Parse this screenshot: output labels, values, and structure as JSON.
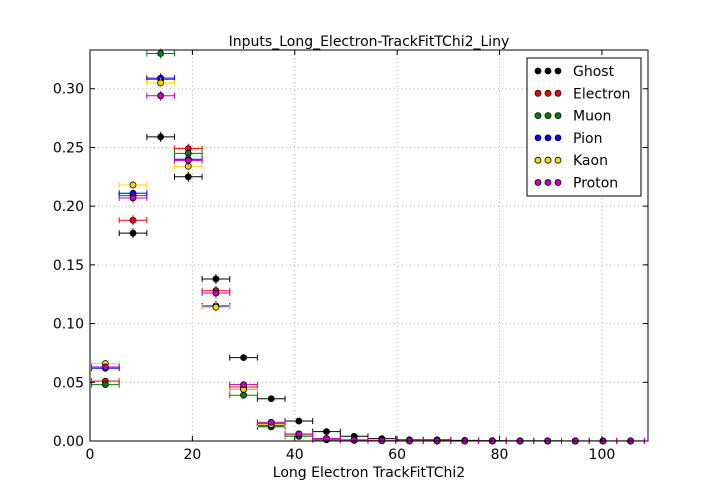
{
  "chart_data": {
    "type": "scatter",
    "title": "Inputs_Long_Electron-TrackFitTChi2_Liny",
    "xlabel": "Long Electron TrackFitTChi2",
    "ylabel": "",
    "xlim": [
      0,
      109
    ],
    "ylim": [
      0,
      0.333
    ],
    "xticks": [
      0,
      20,
      40,
      60,
      80,
      100
    ],
    "xtick_labels": [
      "0",
      "20",
      "40",
      "60",
      "80",
      "100"
    ],
    "yticks": [
      0.0,
      0.05,
      0.1,
      0.15,
      0.2,
      0.25,
      0.3
    ],
    "ytick_labels": [
      "0.00",
      "0.05",
      "0.10",
      "0.15",
      "0.20",
      "0.25",
      "0.30"
    ],
    "grid": true,
    "legend_position": "top-right",
    "bin_width": 5.4,
    "x": [
      3.0,
      8.4,
      13.8,
      19.2,
      24.6,
      30.0,
      35.4,
      40.8,
      46.2,
      51.6,
      57.0,
      62.4,
      67.8,
      73.2,
      78.6,
      84.0,
      89.4,
      94.8,
      100.2,
      105.6
    ],
    "series": [
      {
        "name": "Ghost",
        "color": "#000000",
        "values": [
          0.063,
          0.177,
          0.259,
          0.225,
          0.138,
          0.071,
          0.036,
          0.017,
          0.008,
          0.004,
          0.002,
          0.001,
          0.001,
          0.0005,
          0.0003,
          0.0002,
          0.0002,
          0.0001,
          0.0001,
          0.0001
        ]
      },
      {
        "name": "Electron",
        "color": "#ff0000",
        "values": [
          0.051,
          0.188,
          0.308,
          0.249,
          0.128,
          0.046,
          0.015,
          0.006,
          0.002,
          0.001,
          0.0005,
          0.0003,
          0.0002,
          0.0001,
          0.0001,
          0.0,
          0.0,
          0.0,
          0.0,
          0.0
        ]
      },
      {
        "name": "Muon",
        "color": "#008000",
        "values": [
          0.048,
          0.209,
          0.33,
          0.245,
          0.115,
          0.039,
          0.012,
          0.004,
          0.001,
          0.0005,
          0.0002,
          0.0001,
          0.0,
          0.0,
          0.0,
          0.0,
          0.0,
          0.0,
          0.0,
          0.0
        ]
      },
      {
        "name": "Pion",
        "color": "#0000ff",
        "values": [
          0.062,
          0.211,
          0.309,
          0.24,
          0.115,
          0.044,
          0.013,
          0.005,
          0.002,
          0.0007,
          0.0003,
          0.0001,
          0.0,
          0.0,
          0.0,
          0.0,
          0.0,
          0.0,
          0.0,
          0.0
        ]
      },
      {
        "name": "Kaon",
        "color": "#ffd700",
        "values": [
          0.066,
          0.218,
          0.305,
          0.234,
          0.114,
          0.044,
          0.014,
          0.005,
          0.002,
          0.0007,
          0.0003,
          0.0001,
          0.0,
          0.0,
          0.0,
          0.0,
          0.0,
          0.0,
          0.0,
          0.0
        ]
      },
      {
        "name": "Proton",
        "color": "#bf00bf",
        "values": [
          0.063,
          0.207,
          0.294,
          0.239,
          0.126,
          0.048,
          0.016,
          0.006,
          0.002,
          0.0008,
          0.0003,
          0.0001,
          0.0,
          0.0,
          0.0,
          0.0,
          0.0,
          0.0,
          0.0,
          0.0
        ]
      }
    ]
  }
}
